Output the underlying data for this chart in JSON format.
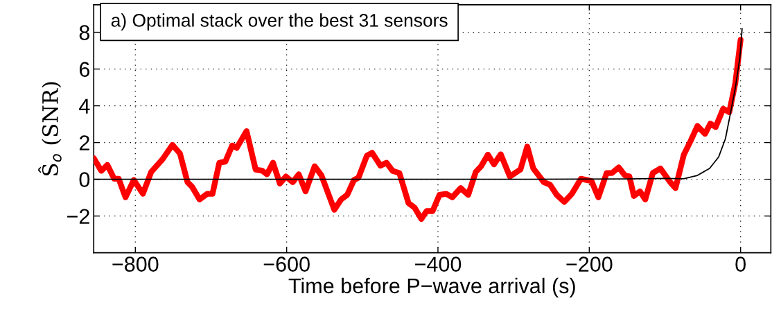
{
  "chart_data": {
    "type": "line",
    "xlabel": "Time before P−wave arrival (s)",
    "ylabel": "Ŝ$_{o}$ (SNR)",
    "annotations": [
      "a) Optimal stack over the best 31 sensors"
    ],
    "xlim": [
      -855,
      40
    ],
    "xticks": [
      -800,
      -600,
      -400,
      -200,
      0
    ],
    "ylim": [
      -4,
      9.5
    ],
    "yticks": [
      -2,
      0,
      2,
      4,
      6,
      8
    ],
    "grid": true,
    "marker": "none",
    "line_style": "solid",
    "series": [
      {
        "color": "#ff0000",
        "x": [
          -855,
          -845,
          -837,
          -828,
          -822,
          -813,
          -802,
          -790,
          -779,
          -764,
          -751,
          -741,
          -731,
          -725,
          -715,
          -705,
          -698,
          -689,
          -681,
          -672,
          -666,
          -653,
          -641,
          -632,
          -626,
          -618,
          -609,
          -601,
          -592,
          -584,
          -575,
          -563,
          -554,
          -537,
          -528,
          -520,
          -511,
          -505,
          -494,
          -487,
          -476,
          -468,
          -460,
          -451,
          -439,
          -431,
          -422,
          -415,
          -407,
          -398,
          -389,
          -381,
          -370,
          -360,
          -350,
          -343,
          -334,
          -326,
          -317,
          -305,
          -291,
          -282,
          -274,
          -260,
          -252,
          -243,
          -233,
          -223,
          -211,
          -197,
          -188,
          -177,
          -170,
          -161,
          -153,
          -147,
          -141,
          -133,
          -126,
          -116,
          -106,
          -93,
          -86,
          -75,
          -66,
          -57,
          -47,
          -40,
          -33,
          -23,
          -15,
          -7,
          0
        ],
        "values": [
          1.15,
          0.46,
          0.78,
          0.03,
          0.03,
          -0.98,
          -0.04,
          -0.79,
          0.4,
          1.09,
          1.87,
          1.4,
          -0.16,
          -0.41,
          -1.1,
          -0.79,
          -0.79,
          0.9,
          0.96,
          1.84,
          1.71,
          2.62,
          0.53,
          0.46,
          0.27,
          0.9,
          -0.23,
          0.15,
          -0.16,
          0.27,
          -0.66,
          0.71,
          0.21,
          -1.66,
          -1.1,
          -0.85,
          -0.04,
          0.09,
          1.28,
          1.44,
          0.74,
          0.9,
          0.46,
          0.34,
          -1.29,
          -1.54,
          -2.16,
          -1.73,
          -1.73,
          -0.85,
          -0.79,
          -0.98,
          -0.48,
          -0.85,
          0.4,
          0.71,
          1.34,
          0.81,
          1.36,
          0.15,
          0.53,
          1.78,
          0.59,
          -0.16,
          -0.29,
          -0.85,
          -1.23,
          -0.79,
          0.03,
          -0.1,
          -0.98,
          0.34,
          0.34,
          0.65,
          0.21,
          0.15,
          -0.91,
          -0.66,
          -1.1,
          0.34,
          0.59,
          -0.16,
          -0.48,
          1.34,
          2.09,
          2.9,
          2.47,
          3.03,
          2.84,
          3.84,
          3.65,
          5.22,
          7.6
        ]
      },
      {
        "color": "#000000",
        "x": [
          -855,
          -300,
          -150,
          -100,
          -75,
          -57,
          -41,
          -29,
          -20,
          -14,
          -7,
          -1,
          2
        ],
        "values": [
          0,
          0,
          0.02,
          0.05,
          0.03,
          0.21,
          0.59,
          1.21,
          2.21,
          3.46,
          4.96,
          6.59,
          8.2
        ]
      }
    ]
  }
}
